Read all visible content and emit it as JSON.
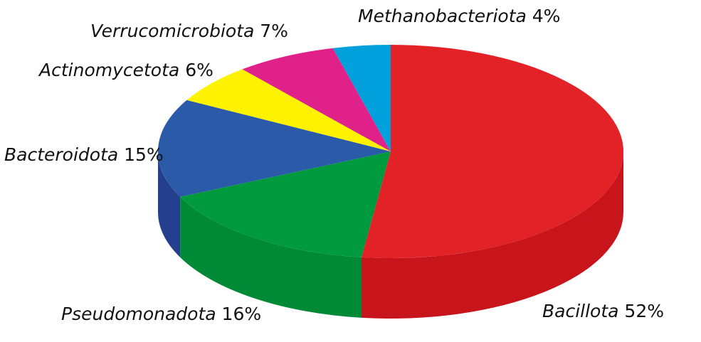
{
  "chart_data": {
    "type": "pie",
    "style": "3d",
    "start": "top",
    "direction": "clockwise",
    "slices": [
      {
        "name": "Bacillota",
        "value": 52,
        "label": "52%",
        "color": "#e32228",
        "side_color": "#c8141b"
      },
      {
        "name": "Pseudomonadota",
        "value": 16,
        "label": "16%",
        "color": "#009a3e",
        "side_color": "#008a36"
      },
      {
        "name": "Bacteroidota",
        "value": 15,
        "label": "15%",
        "color": "#2b5ba8",
        "side_color": "#243f8e"
      },
      {
        "name": "Actinomycetota",
        "value": 6,
        "label": "6%",
        "color": "#fff200",
        "side_color": "#e0d400"
      },
      {
        "name": "Verrucomicrobiota",
        "value": 7,
        "label": "7%",
        "color": "#e0218a",
        "side_color": "#b81a70"
      },
      {
        "name": "Methanobacteriota",
        "value": 4,
        "label": "4%",
        "color": "#00a0dc",
        "side_color": "#0088bb"
      }
    ]
  }
}
